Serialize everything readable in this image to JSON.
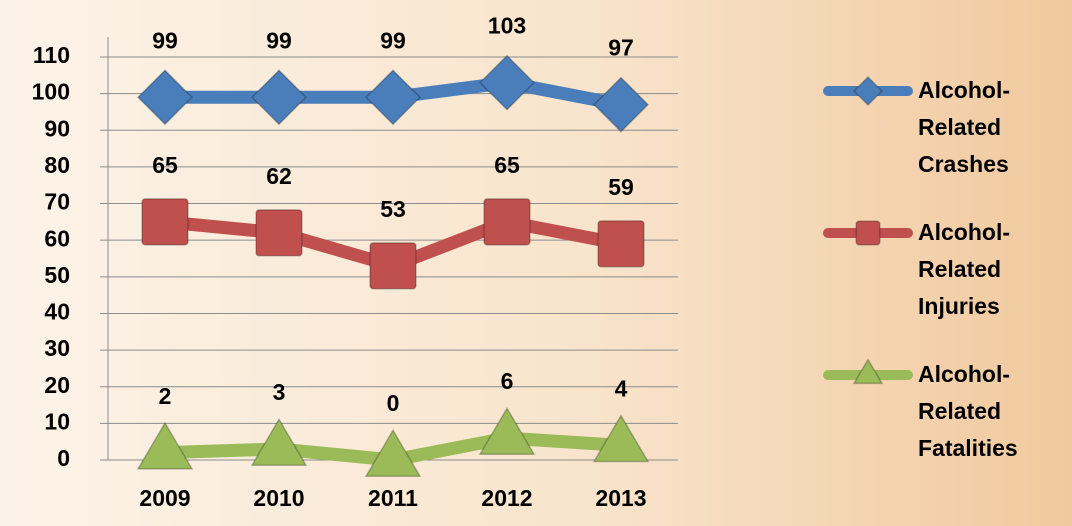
{
  "chart_data": {
    "type": "line",
    "categories": [
      "2009",
      "2010",
      "2011",
      "2012",
      "2013"
    ],
    "series": [
      {
        "name": "Alcohol-Related Crashes",
        "color": "#4a7ebb",
        "marker": "diamond",
        "values": [
          99,
          99,
          99,
          103,
          97
        ]
      },
      {
        "name": "Alcohol-Related Injuries",
        "color": "#c0504d",
        "marker": "square",
        "values": [
          65,
          62,
          53,
          65,
          59
        ]
      },
      {
        "name": "Alcohol-Related Fatalities",
        "color": "#9bbb59",
        "marker": "triangle",
        "values": [
          2,
          3,
          0,
          6,
          4
        ]
      }
    ],
    "ylim": [
      0,
      110
    ],
    "yticks": [
      0,
      10,
      20,
      30,
      40,
      50,
      60,
      70,
      80,
      90,
      100,
      110
    ],
    "grid": true,
    "legend": "right"
  }
}
